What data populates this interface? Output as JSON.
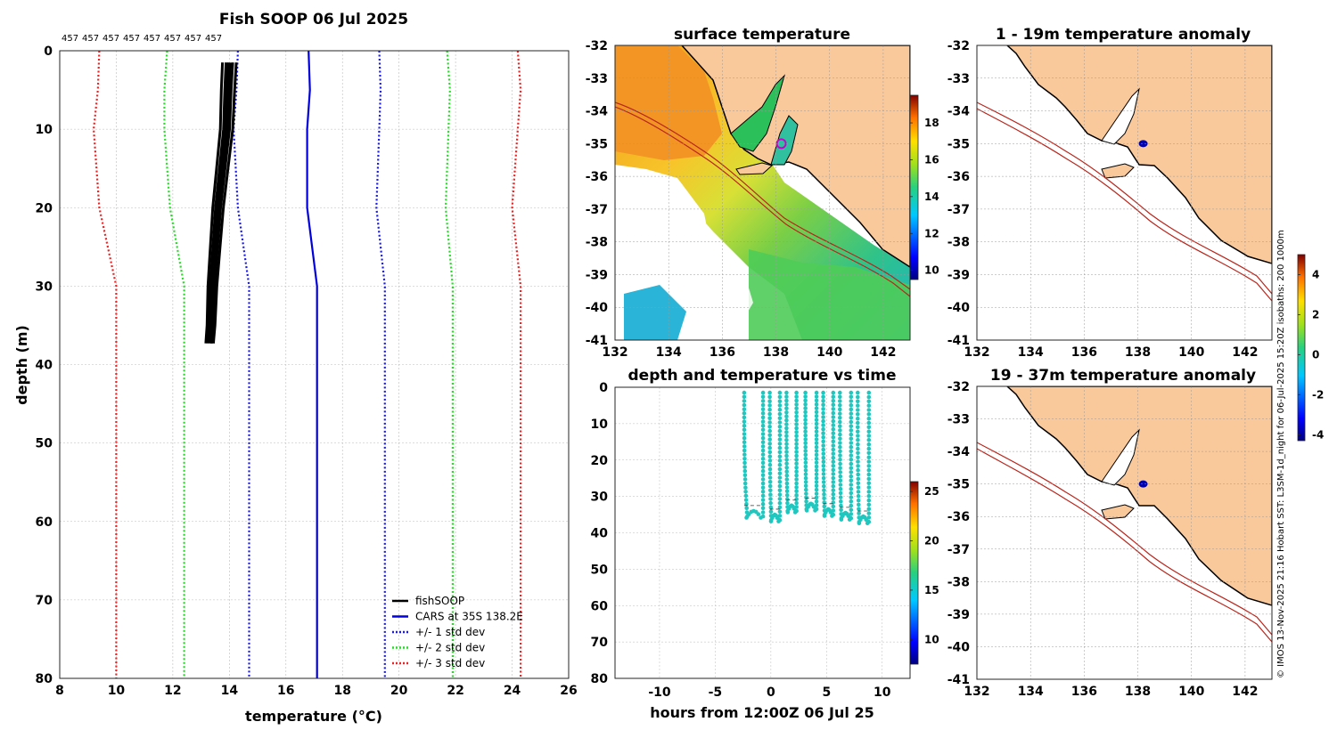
{
  "colors": {
    "fishsoop": "#000000",
    "cars": "#0000dd",
    "std1": "#1a1aee",
    "std2": "#22dd22",
    "std3": "#ee2222",
    "land": "#f9c99b",
    "cyan_pts": "#21c7bf",
    "anomaly_dot": "#0000aa",
    "marker": "#cc00cc",
    "contour": "#b8261c"
  },
  "credit": "© IMOS 13-Nov-2025 21:16 Hobart SST: L3SM-1d_night for 06-Jul-2025 15:20Z isobaths: 200  1000m",
  "chart_data": [
    {
      "id": "profile",
      "type": "line",
      "title": "Fish SOOP 06 Jul 2025",
      "xlabel": "temperature (°C)",
      "ylabel": "depth (m)",
      "xlim": [
        8,
        26
      ],
      "ylim": [
        0,
        80
      ],
      "y_reversed": true,
      "xticks": [
        "8",
        "10",
        "12",
        "14",
        "16",
        "18",
        "20",
        "22",
        "24",
        "26"
      ],
      "yticks": [
        "0",
        "10",
        "20",
        "30",
        "40",
        "50",
        "60",
        "70",
        "80"
      ],
      "top_labels": [
        "457",
        "457",
        "457",
        "457",
        "457",
        "457",
        "457",
        "457"
      ],
      "grid": true,
      "series": [
        {
          "name": "CARS at 35S 138.2E",
          "style": "solid",
          "color_key": "cars",
          "depth": [
            0,
            5,
            10,
            20,
            30,
            80
          ],
          "temp": [
            16.8,
            16.85,
            16.75,
            16.75,
            17.1,
            17.1
          ]
        },
        {
          "name": "+/- 1 std dev",
          "style": "dotted",
          "color_key": "std1",
          "depth": [
            0,
            5,
            10,
            20,
            30,
            80
          ],
          "temp": [
            14.3,
            14.25,
            14.15,
            14.3,
            14.7,
            14.7
          ]
        },
        {
          "name": "+/- 1 std dev",
          "style": "dotted",
          "color_key": "std1",
          "depth": [
            0,
            5,
            10,
            20,
            30,
            80
          ],
          "temp": [
            19.3,
            19.35,
            19.3,
            19.2,
            19.5,
            19.5
          ]
        },
        {
          "name": "+/- 2 std dev",
          "style": "dotted",
          "color_key": "std2",
          "depth": [
            0,
            5,
            10,
            20,
            30,
            80
          ],
          "temp": [
            11.8,
            11.7,
            11.7,
            11.9,
            12.4,
            12.4
          ]
        },
        {
          "name": "+/- 2 std dev",
          "style": "dotted",
          "color_key": "std2",
          "depth": [
            0,
            5,
            10,
            20,
            30,
            80
          ],
          "temp": [
            21.7,
            21.8,
            21.75,
            21.65,
            21.9,
            21.9
          ]
        },
        {
          "name": "+/- 3 std dev",
          "style": "dotted",
          "color_key": "std3",
          "depth": [
            0,
            5,
            10,
            20,
            30,
            80
          ],
          "temp": [
            9.4,
            9.35,
            9.2,
            9.4,
            10.0,
            10.0
          ]
        },
        {
          "name": "+/- 3 std dev",
          "style": "dotted",
          "color_key": "std3",
          "depth": [
            0,
            5,
            10,
            20,
            30,
            80
          ],
          "temp": [
            24.2,
            24.3,
            24.2,
            24.0,
            24.3,
            24.3
          ]
        },
        {
          "name": "fishSOOP",
          "style": "thick",
          "color_key": "fishsoop",
          "depth": [
            1.5,
            5,
            10,
            15,
            20,
            25,
            30,
            35,
            37.3
          ],
          "temp": [
            14.0,
            13.95,
            13.9,
            13.75,
            13.6,
            13.5,
            13.4,
            13.35,
            13.3
          ]
        }
      ],
      "legend": {
        "placement": "bottom-right",
        "entries": [
          {
            "label": "fishSOOP",
            "color_key": "fishsoop",
            "style": "solid"
          },
          {
            "label": "CARS at 35S 138.2E",
            "color_key": "cars",
            "style": "solid"
          },
          {
            "label": "+/- 1 std dev",
            "color_key": "std1",
            "style": "dotted"
          },
          {
            "label": "+/- 2 std dev",
            "color_key": "std2",
            "style": "dotted"
          },
          {
            "label": "+/- 3 std dev",
            "color_key": "std3",
            "style": "dotted"
          }
        ]
      }
    },
    {
      "id": "sst_map",
      "type": "heatmap",
      "title": "surface temperature",
      "xlim": [
        132,
        143
      ],
      "ylim": [
        -41,
        -32
      ],
      "xticks": [
        "132",
        "134",
        "136",
        "138",
        "140",
        "142"
      ],
      "yticks": [
        "-32",
        "-33",
        "-34",
        "-35",
        "-36",
        "-37",
        "-38",
        "-39",
        "-40",
        "-41"
      ],
      "colorbar": {
        "min": 9.5,
        "max": 19.5,
        "ticks": [
          "10",
          "12",
          "14",
          "16",
          "18"
        ]
      },
      "marker": {
        "lon": 138.2,
        "lat": -35.0
      }
    },
    {
      "id": "depth_time",
      "type": "scatter",
      "title": "depth and temperature vs time",
      "xlabel": "hours from 12:00Z 06 Jul 25",
      "xlim": [
        -14,
        12.5
      ],
      "ylim": [
        0,
        80
      ],
      "y_reversed": true,
      "xticks": [
        "-10",
        "-5",
        "0",
        "5",
        "10"
      ],
      "yticks": [
        "0",
        "10",
        "20",
        "30",
        "40",
        "50",
        "60",
        "70",
        "80"
      ],
      "casts": [
        {
          "t_down": -2.4,
          "t_bottom": -1.3,
          "t_up": -0.7,
          "max_depth": 35.5
        },
        {
          "t_down": -0.1,
          "t_bottom": 0.4,
          "t_up": 0.8,
          "max_depth": 36.5
        },
        {
          "t_down": 1.4,
          "t_bottom": 1.8,
          "t_up": 2.3,
          "max_depth": 34.0
        },
        {
          "t_down": 3.1,
          "t_bottom": 3.5,
          "t_up": 4.1,
          "max_depth": 33.5
        },
        {
          "t_down": 4.7,
          "t_bottom": 5.2,
          "t_up": 5.6,
          "max_depth": 35.0
        },
        {
          "t_down": 6.2,
          "t_bottom": 6.7,
          "t_up": 7.2,
          "max_depth": 36.0
        },
        {
          "t_down": 7.8,
          "t_bottom": 8.3,
          "t_up": 8.8,
          "max_depth": 37.0
        }
      ],
      "colorbar": {
        "min": 7.5,
        "max": 26,
        "ticks": [
          "10",
          "15",
          "20",
          "25"
        ]
      }
    },
    {
      "id": "anom_1_19",
      "type": "heatmap",
      "title": "1 - 19m temperature anomaly",
      "xlim": [
        132,
        143
      ],
      "ylim": [
        -41,
        -32
      ],
      "xticks": [
        "132",
        "134",
        "136",
        "138",
        "140",
        "142"
      ],
      "yticks": [
        "-32",
        "-33",
        "-34",
        "-35",
        "-36",
        "-37",
        "-38",
        "-39",
        "-40",
        "-41"
      ],
      "marker": {
        "lon": 138.2,
        "lat": -35.0
      },
      "colorbar": {
        "min": -4.3,
        "max": 5.0,
        "ticks": [
          "-4",
          "-2",
          "0",
          "2",
          "4"
        ]
      }
    },
    {
      "id": "anom_19_37",
      "type": "heatmap",
      "title": "19 - 37m temperature anomaly",
      "xlim": [
        132,
        143
      ],
      "ylim": [
        -41,
        -32
      ],
      "xticks": [
        "132",
        "134",
        "136",
        "138",
        "140",
        "142"
      ],
      "yticks": [
        "-32",
        "-33",
        "-34",
        "-35",
        "-36",
        "-37",
        "-38",
        "-39",
        "-40",
        "-41"
      ],
      "marker": {
        "lon": 138.2,
        "lat": -35.0
      }
    }
  ]
}
